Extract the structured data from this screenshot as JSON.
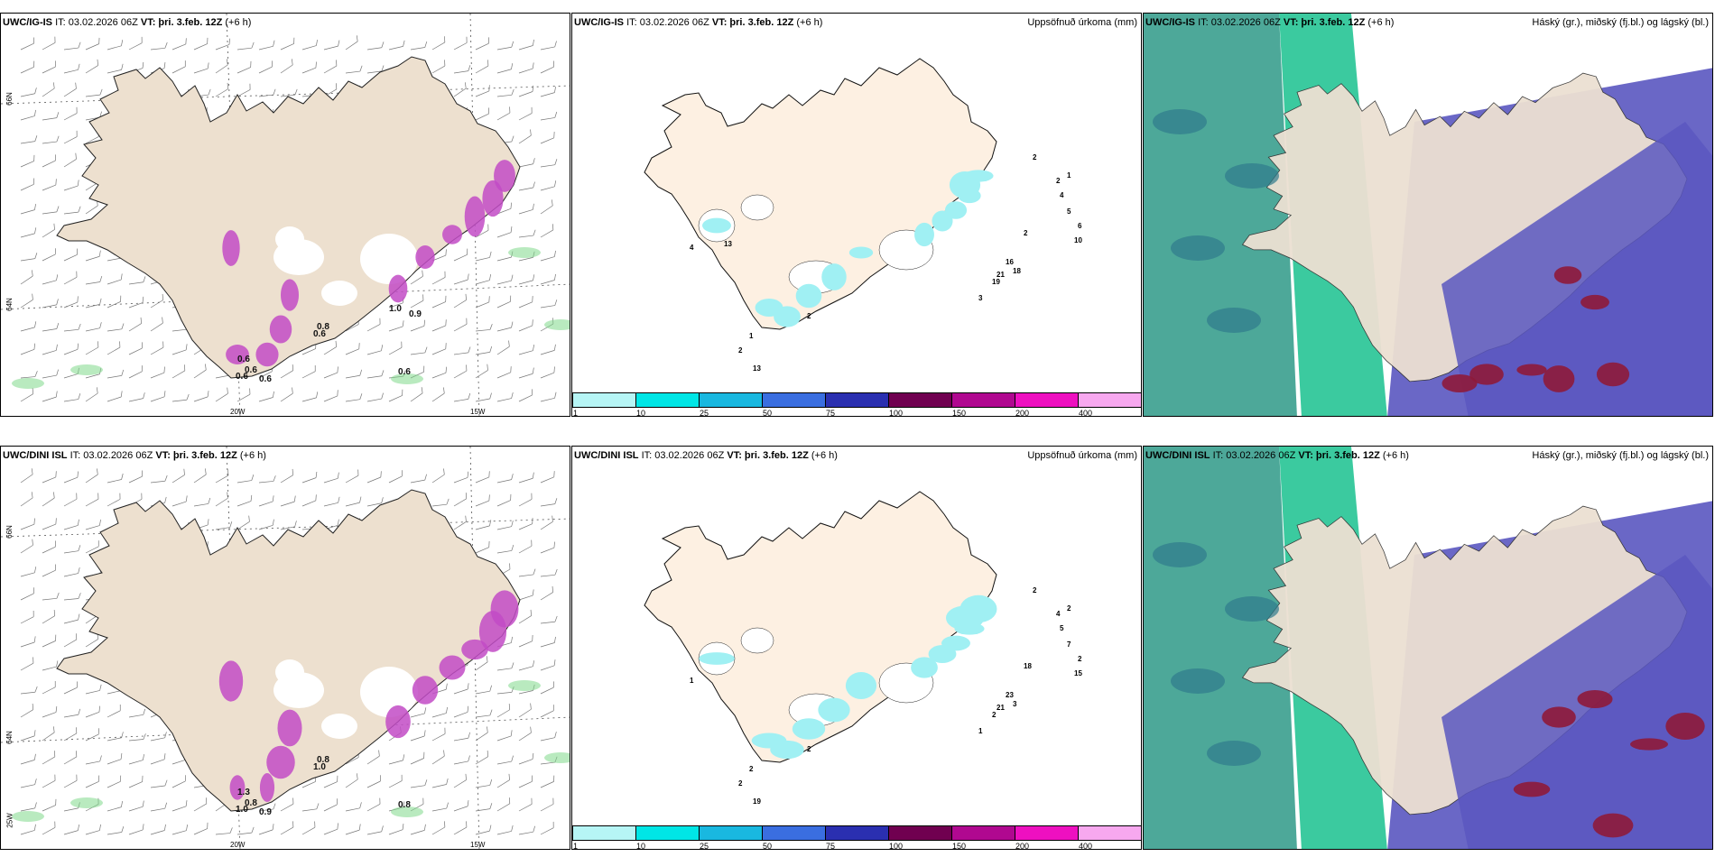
{
  "rows": [
    {
      "model": "UWC/IG-IS",
      "it_label": "IT: 03.02.2026 06Z",
      "vt_label": "VT: þri. 3.feb. 12Z",
      "lead": "(+6 h)",
      "wind_labels": [
        "0.6",
        "0.6",
        "0.6",
        "0.8",
        "0.6",
        "0.6",
        "0.6",
        "1.0",
        "0.9"
      ],
      "precip_labels": [
        "2",
        "1",
        "2",
        "4",
        "5",
        "6",
        "10",
        "2",
        "16",
        "21",
        "18",
        "19",
        "3",
        "2",
        "1",
        "2",
        "13",
        "4",
        "13"
      ]
    },
    {
      "model": "UWC/DINI ISL",
      "it_label": "IT: 03.02.2026 06Z",
      "vt_label": "VT: þri. 3.feb. 12Z",
      "lead": "(+6 h)",
      "wind_labels": [
        "1.3",
        "0.8",
        "0.9",
        "0.8",
        "0.8",
        "1.0",
        "1.0"
      ],
      "precip_labels": [
        "2",
        "2",
        "4",
        "5",
        "7",
        "2",
        "15",
        "18",
        "23",
        "21",
        "3",
        "2",
        "1",
        "2",
        "2",
        "2",
        "19",
        "1"
      ]
    }
  ],
  "precip_title": "Uppsöfnuð úrkoma (mm)",
  "cloud_title": "Háský (gr.), miðský (fj.bl.) og lágský (bl.)",
  "axis_labels": {
    "lat66": "66N",
    "lat64": "64N",
    "lon20": "20W",
    "lon15": "15W",
    "lon25": "25W"
  },
  "colorbar": {
    "ticks": [
      "1",
      "10",
      "25",
      "50",
      "75",
      "100",
      "150",
      "200",
      "400"
    ],
    "colors": [
      "#b6f5f5",
      "#00e6e6",
      "#19b8e0",
      "#3a6ee0",
      "#2a2fb0",
      "#700050",
      "#b00890",
      "#ee10c0",
      "#f7a8ef"
    ]
  },
  "colors": {
    "land": "#ede0cf",
    "land_precip": "#fdf0e2",
    "cloud_high": "#3a9e8e",
    "cloud_green": "#19c18e",
    "cloud_mid": "#5a57c0",
    "cloud_low": "#8e1a3a",
    "precip_magenta": "#c24bc5",
    "precip_cyan": "#a0f0f3"
  }
}
